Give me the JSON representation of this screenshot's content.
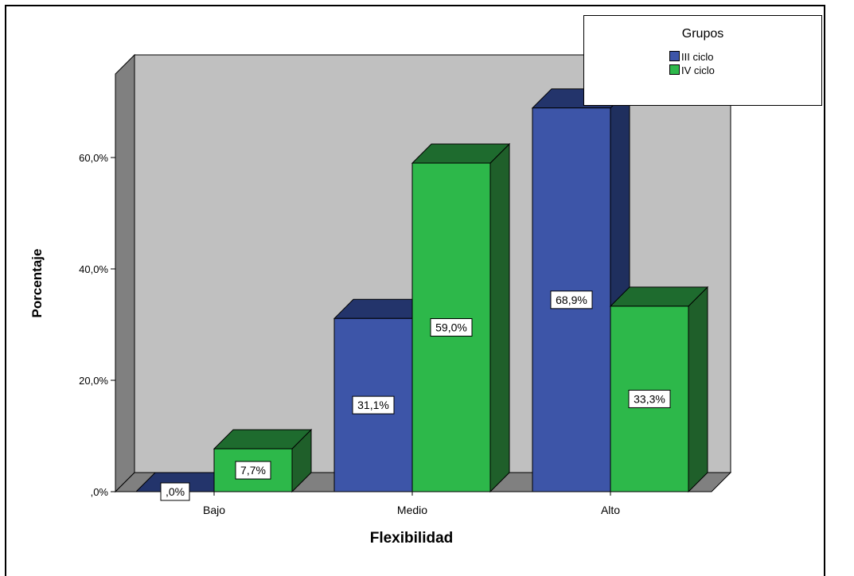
{
  "chart_data": {
    "type": "bar",
    "title": "",
    "xlabel": "Flexibilidad",
    "ylabel": "Porcentaje",
    "categories": [
      "Bajo",
      "Medio",
      "Alto"
    ],
    "ylim": [
      0,
      75
    ],
    "yticks": [
      0,
      20,
      40,
      60
    ],
    "ytick_labels": [
      ",0%",
      "20,0%",
      "40,0%",
      "60,0%"
    ],
    "legend_title": "Grupos",
    "legend_position": "top-right",
    "grid": false,
    "series": [
      {
        "name": "III ciclo",
        "values": [
          0.0,
          31.1,
          68.9
        ],
        "labels": [
          ",0%",
          "31,1%",
          "68,9%"
        ],
        "color": "#3d55a8",
        "top_color": "#23346b",
        "side_color": "#1f2f5e"
      },
      {
        "name": "IV ciclo",
        "values": [
          7.7,
          59.0,
          33.3
        ],
        "labels": [
          "7,7%",
          "59,0%",
          "33,3%"
        ],
        "color": "#2db84a",
        "top_color": "#1e6b2e",
        "side_color": "#1f5f2a"
      }
    ],
    "colors": {
      "back_wall": "#c0c0c0",
      "side_wall": "#808080",
      "floor": "#808080"
    }
  }
}
